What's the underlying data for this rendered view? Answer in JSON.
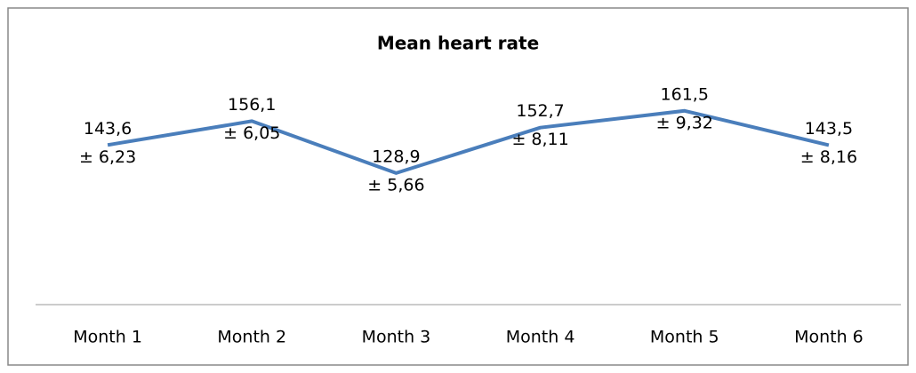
{
  "chart_data": {
    "type": "line",
    "title": "Mean heart rate",
    "categories": [
      "Month 1",
      "Month 2",
      "Month 3",
      "Month 4",
      "Month 5",
      "Month 6"
    ],
    "series": [
      {
        "name": "Mean heart rate",
        "color": "#4a7ebb",
        "values": [
          143.6,
          156.1,
          128.9,
          152.7,
          161.5,
          143.5
        ],
        "value_labels": [
          "143,6",
          "156,1",
          "128,9",
          "152,7",
          "161,5",
          "143,5"
        ],
        "errors": [
          6.23,
          6.05,
          5.66,
          8.11,
          9.32,
          8.16
        ],
        "error_labels": [
          "± 6,23",
          "± 6,05",
          "± 5,66",
          "± 8,11",
          "± 9,32",
          "± 8,16"
        ]
      }
    ],
    "ylim": [
      60,
      180
    ],
    "grid": false
  }
}
